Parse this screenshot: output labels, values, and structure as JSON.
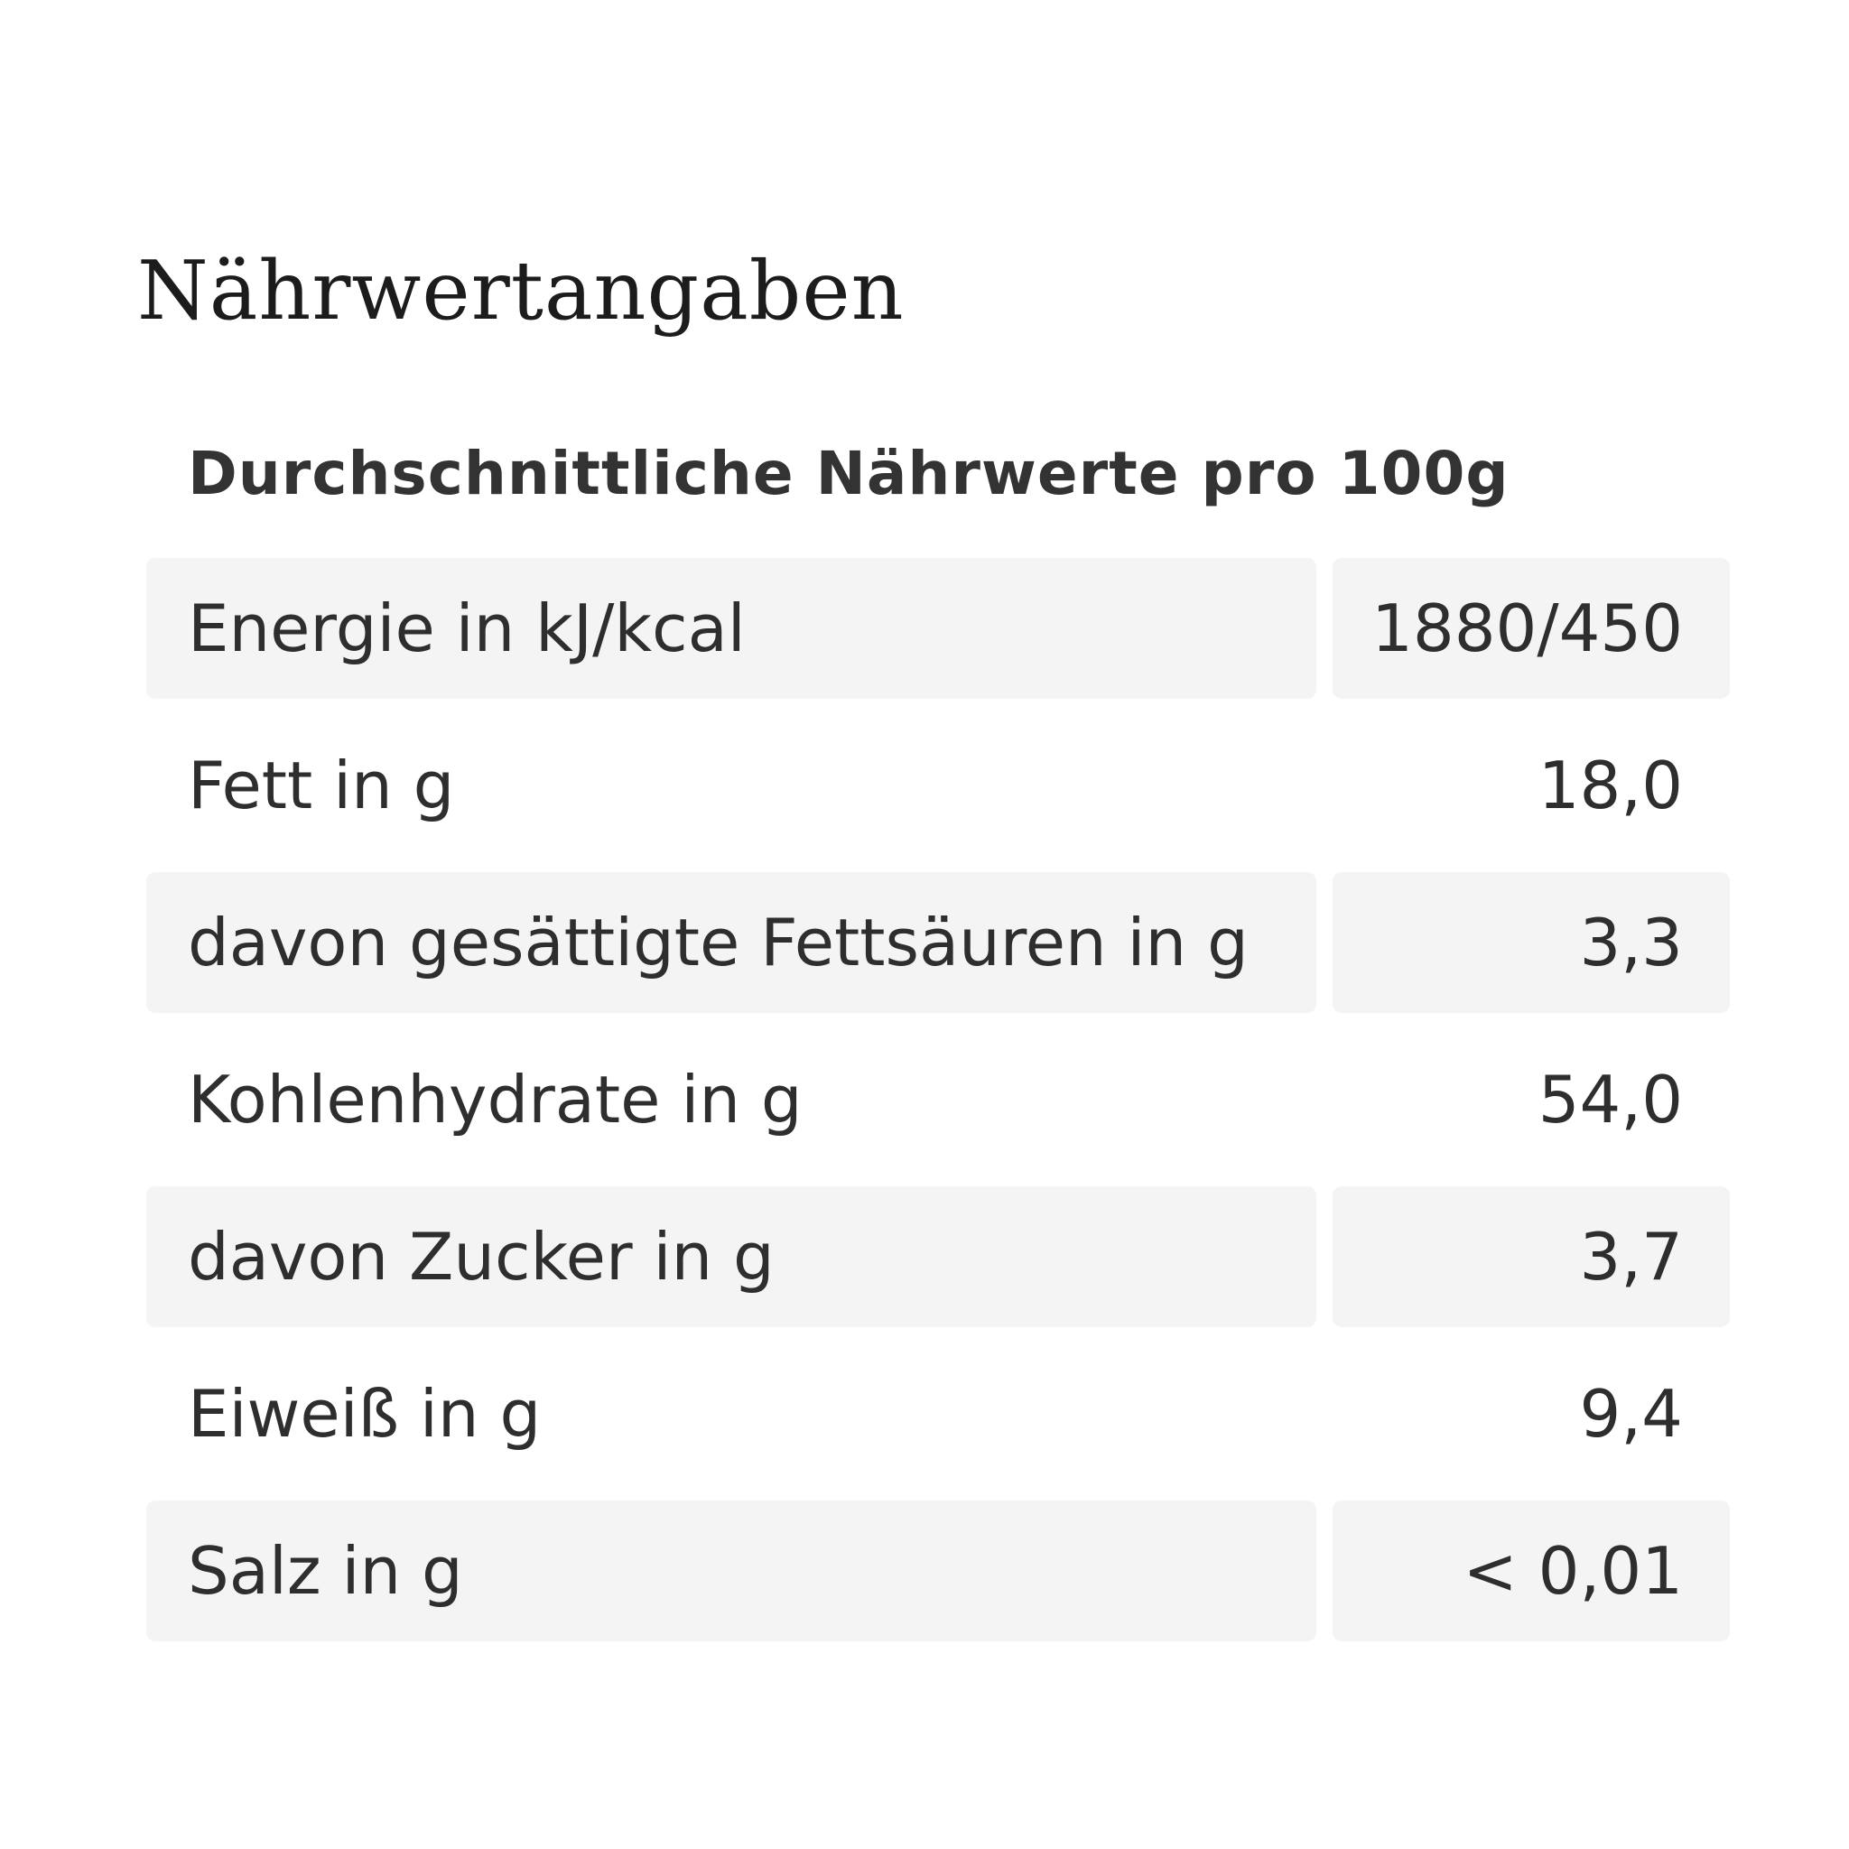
{
  "section": {
    "title": "Nährwertangaben",
    "subtitle": "Durchschnittliche Nährwerte pro 100g"
  },
  "nutrition_rows": [
    {
      "label": "Energie in kJ/kcal",
      "value": "1880/450"
    },
    {
      "label": "Fett in g",
      "value": "18,0"
    },
    {
      "label": "davon gesättigte Fettsäuren in g",
      "value": "3,3"
    },
    {
      "label": "Kohlenhydrate in g",
      "value": "54,0"
    },
    {
      "label": "davon Zucker in g",
      "value": "3,7"
    },
    {
      "label": "Eiweiß in g",
      "value": "9,4"
    },
    {
      "label": "Salz in g",
      "value": "< 0,01"
    }
  ],
  "colors": {
    "background": "#ffffff",
    "row_shade": "#f4f4f4",
    "text": "#2e2e2e"
  }
}
